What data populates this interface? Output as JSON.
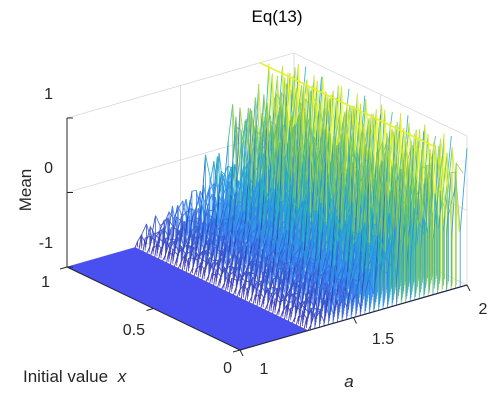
{
  "chart_data": {
    "type": "surface",
    "title": "Eq(13)",
    "xlabel": "Initial value",
    "xlabel_var": "x",
    "ylabel": "a",
    "zlabel": "Mean",
    "xlim": [
      0,
      1
    ],
    "ylim": [
      1,
      2
    ],
    "zlim": [
      -1,
      1
    ],
    "x_ticks": [
      "0",
      "0.5",
      "1"
    ],
    "y_ticks": [
      "1",
      "1.5",
      "2"
    ],
    "z_ticks": [
      "-1",
      "0",
      "1"
    ],
    "colormap": [
      "#3e26a8",
      "#2e87f7",
      "#1eb8be",
      "#83c947",
      "#f9fb15"
    ],
    "surface_profile": {
      "a": [
        1.0,
        1.3,
        1.31,
        1.33,
        1.35,
        1.37,
        1.39,
        1.41,
        1.43,
        1.45,
        1.47,
        1.49,
        1.51,
        1.53,
        1.55,
        1.57,
        1.59,
        1.61,
        1.63,
        1.65,
        1.67,
        1.69,
        1.71,
        1.73,
        1.75,
        1.77,
        1.79,
        1.81,
        1.83,
        1.85,
        1.87,
        1.89,
        1.91,
        1.93,
        1.95,
        1.97,
        2.0
      ],
      "mean_low": [
        -1.0,
        -1.0,
        -0.95,
        -0.95,
        -0.9,
        -0.95,
        -0.85,
        -0.95,
        -0.8,
        -0.9,
        -0.85,
        -0.75,
        -0.85,
        -0.9,
        -0.7,
        -0.75,
        -0.8,
        -0.5,
        -0.6,
        -0.7,
        -0.55,
        -0.7,
        -0.3,
        -0.4,
        -0.5,
        -0.6,
        -0.4,
        -0.35,
        -0.5,
        -0.45,
        -0.3,
        -0.4,
        -0.25,
        -0.5,
        -0.35,
        -0.3,
        -0.35
      ],
      "mean_high": [
        -1.0,
        -1.0,
        -0.8,
        -0.75,
        -0.7,
        -0.8,
        -0.6,
        -0.7,
        -0.5,
        -0.65,
        -0.55,
        -0.4,
        -0.55,
        -0.6,
        -0.3,
        -0.4,
        -0.45,
        0.05,
        -0.1,
        -0.25,
        -0.05,
        -0.2,
        0.7,
        0.6,
        0.45,
        0.3,
        0.55,
        0.8,
        0.65,
        0.6,
        1.0,
        0.95,
        0.9,
        0.95,
        1.0,
        0.95,
        0.9
      ]
    }
  }
}
